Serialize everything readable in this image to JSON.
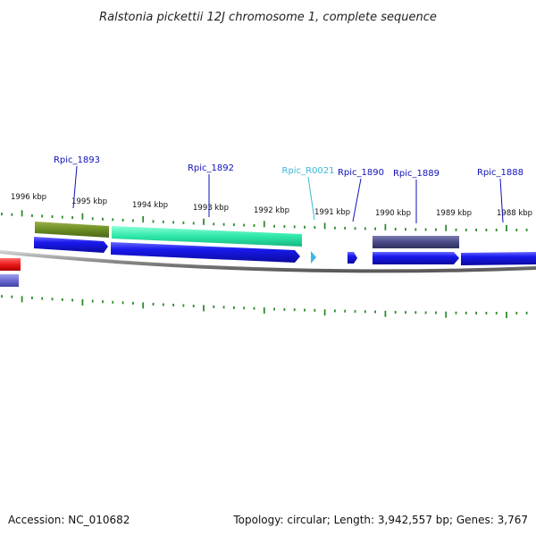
{
  "title": "Ralstonia pickettii 12J chromosome 1, complete sequence",
  "footer": {
    "accession": "Accession: NC_010682",
    "summary": "Topology: circular; Length: 3,942,557 bp; Genes: 3,767"
  },
  "colors": {
    "backbone": "#8a8a8a",
    "tick": "#2e8b2e",
    "gene_label": "#1010b8",
    "rna_label": "#3bb8d8",
    "cds_forward": "#1a1aee",
    "cds_reverse": "#1a1aee",
    "olive_feature": "#6b8e23",
    "teal_feature": "#2ee8a8",
    "slate_feature": "#4a4a88",
    "red_feature": "#ee1a1a",
    "lavender_feature": "#6a6ad0",
    "rna_feature": "#3bb8e8"
  },
  "scale": {
    "ticks": [
      {
        "label": "1996 kbp"
      },
      {
        "label": "1995 kbp"
      },
      {
        "label": "1994 kbp"
      },
      {
        "label": "1993 kbp"
      },
      {
        "label": "1992 kbp"
      },
      {
        "label": "1991 kbp"
      },
      {
        "label": "1990 kbp"
      },
      {
        "label": "1989 kbp"
      },
      {
        "label": "1988 kbp"
      }
    ]
  },
  "genes": [
    {
      "label": "Rpic_1893",
      "type": "cds"
    },
    {
      "label": "Rpic_1892",
      "type": "cds"
    },
    {
      "label": "Rpic_R0021",
      "type": "rna"
    },
    {
      "label": "Rpic_1890",
      "type": "cds"
    },
    {
      "label": "Rpic_1889",
      "type": "cds"
    },
    {
      "label": "Rpic_1888",
      "type": "cds"
    }
  ]
}
